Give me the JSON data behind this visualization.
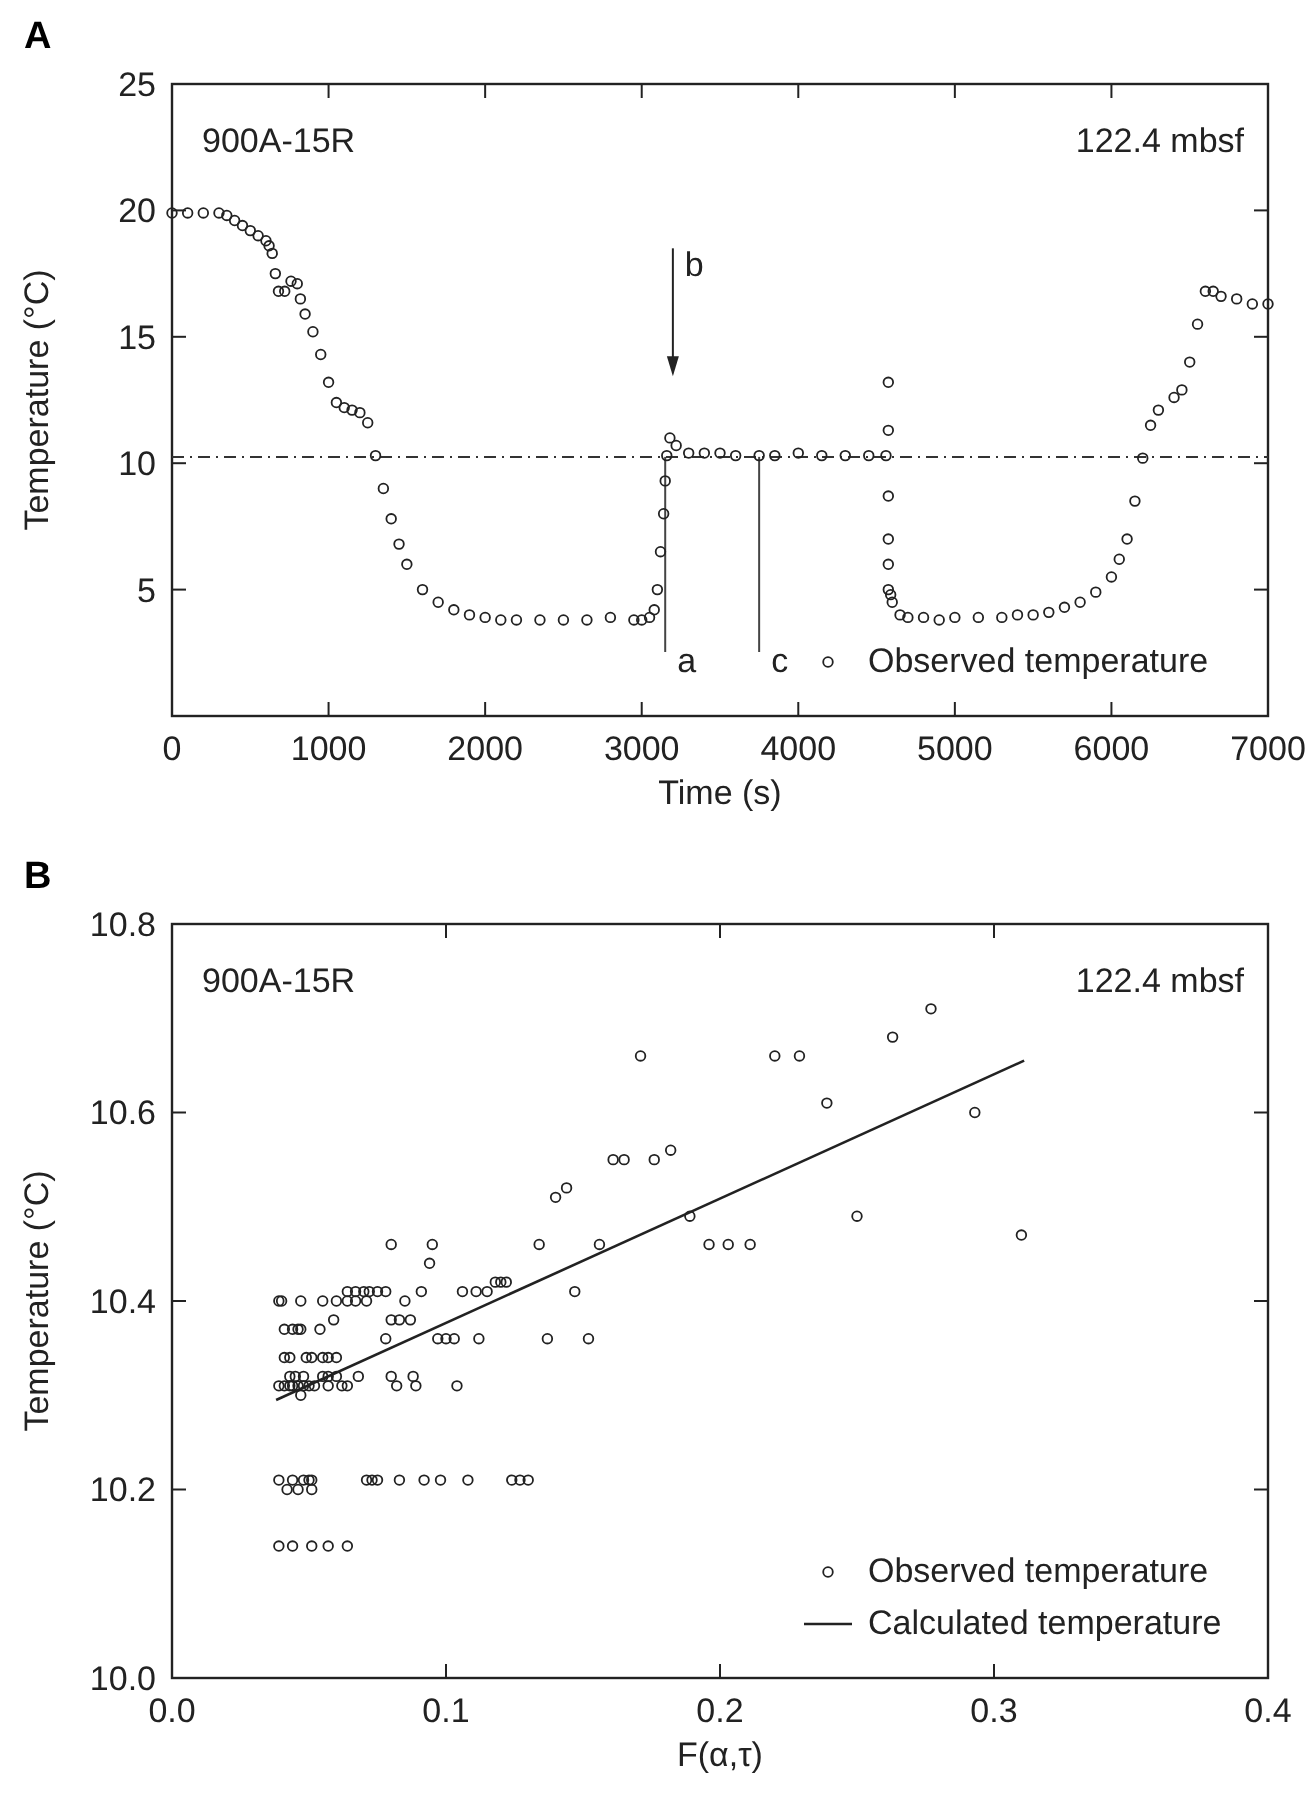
{
  "chart_data": [
    {
      "type": "scatter",
      "title": "A",
      "xlabel": "Time (s)",
      "ylabel": "Temperature (°C)",
      "xlim": [
        0,
        7000
      ],
      "xticks": [
        0,
        1000,
        2000,
        3000,
        4000,
        5000,
        6000,
        7000
      ],
      "ylim": [
        0,
        25
      ],
      "yticks": [
        5,
        10,
        15,
        20,
        25
      ],
      "marker": "circle",
      "legend": "bottom right",
      "grid": false,
      "ref_lines": [
        {
          "axis": "y",
          "value": 10.25,
          "line_style": "dashed"
        },
        {
          "axis": "x",
          "value": 3150,
          "label": "a"
        },
        {
          "axis": "x",
          "value": 3750,
          "label": "c"
        }
      ],
      "annotations": [
        "900A-15R",
        "122.4 mbsf",
        "b"
      ],
      "series": [
        {
          "name": "Observed temperature",
          "color": "#222222",
          "x": [
            0,
            100,
            200,
            300,
            350,
            400,
            450,
            500,
            550,
            600,
            620,
            640,
            660,
            680,
            720,
            760,
            800,
            820,
            850,
            900,
            950,
            1000,
            1050,
            1100,
            1150,
            1200,
            1250,
            1300,
            1350,
            1400,
            1450,
            1500,
            1600,
            1700,
            1800,
            1900,
            2000,
            2100,
            2200,
            2350,
            2500,
            2650,
            2800,
            2950,
            3000,
            3050,
            3080,
            3100,
            3120,
            3140,
            3150,
            3160,
            3180,
            3220,
            3300,
            3400,
            3500,
            3600,
            3750,
            3850,
            4000,
            4150,
            4300,
            4450,
            4560,
            4575,
            4575,
            4575,
            4575,
            4575,
            4575,
            4590,
            4600,
            4650,
            4700,
            4800,
            4900,
            5000,
            5150,
            5300,
            5400,
            5500,
            5600,
            5700,
            5800,
            5900,
            6000,
            6050,
            6100,
            6150,
            6200,
            6250,
            6300,
            6400,
            6450,
            6500,
            6550,
            6600,
            6650,
            6700,
            6800,
            6900,
            7000
          ],
          "values": [
            19.9,
            19.9,
            19.9,
            19.9,
            19.8,
            19.6,
            19.4,
            19.2,
            19.0,
            18.8,
            18.6,
            18.3,
            17.5,
            16.8,
            16.8,
            17.2,
            17.1,
            16.5,
            15.9,
            15.2,
            14.3,
            13.2,
            12.4,
            12.2,
            12.1,
            12.0,
            11.6,
            10.3,
            9.0,
            7.8,
            6.8,
            6.0,
            5.0,
            4.5,
            4.2,
            4.0,
            3.9,
            3.8,
            3.8,
            3.8,
            3.8,
            3.8,
            3.9,
            3.8,
            3.8,
            3.9,
            4.2,
            5.0,
            6.5,
            8.0,
            9.3,
            10.3,
            11.0,
            10.7,
            10.4,
            10.4,
            10.4,
            10.3,
            10.3,
            10.3,
            10.4,
            10.3,
            10.3,
            10.3,
            10.3,
            13.2,
            11.3,
            8.7,
            7.0,
            6.0,
            5.0,
            4.8,
            4.5,
            4.0,
            3.9,
            3.9,
            3.8,
            3.9,
            3.9,
            3.9,
            4.0,
            4.0,
            4.1,
            4.3,
            4.5,
            4.9,
            5.5,
            6.2,
            7.0,
            8.5,
            10.2,
            11.5,
            12.1,
            12.6,
            12.9,
            14.0,
            15.5,
            16.8,
            16.8,
            16.6,
            16.5,
            16.3,
            16.3
          ]
        }
      ]
    },
    {
      "type": "scatter",
      "title": "B",
      "xlabel": "F(α,τ)",
      "ylabel": "Temperature (°C)",
      "xlim": [
        0,
        0.4
      ],
      "xticks": [
        {
          "value": 0,
          "label": "0.0"
        },
        0.1,
        0.2,
        0.3,
        0.4
      ],
      "ylim": [
        10,
        10.8
      ],
      "yticks": [
        {
          "value": 10,
          "label": "10.0"
        },
        10.2,
        10.4,
        10.6,
        10.8
      ],
      "marker": "circle",
      "legend": "bottom right",
      "grid": false,
      "annotations": [
        "900A-15R",
        "122.4 mbsf"
      ],
      "series": [
        {
          "name": "Observed temperature",
          "color": "#222222",
          "x": [
            0.039,
            0.044,
            0.051,
            0.057,
            0.064,
            0.039,
            0.044,
            0.048,
            0.05,
            0.051,
            0.042,
            0.046,
            0.051,
            0.071,
            0.073,
            0.075,
            0.083,
            0.092,
            0.098,
            0.108,
            0.124,
            0.127,
            0.13,
            0.039,
            0.041,
            0.043,
            0.044,
            0.046,
            0.048,
            0.05,
            0.052,
            0.057,
            0.062,
            0.064,
            0.082,
            0.089,
            0.104,
            0.047,
            0.043,
            0.045,
            0.048,
            0.055,
            0.057,
            0.06,
            0.068,
            0.08,
            0.088,
            0.041,
            0.043,
            0.049,
            0.051,
            0.055,
            0.057,
            0.06,
            0.078,
            0.097,
            0.1,
            0.103,
            0.112,
            0.137,
            0.152,
            0.041,
            0.044,
            0.046,
            0.047,
            0.054,
            0.059,
            0.08,
            0.083,
            0.087,
            0.039,
            0.04,
            0.047,
            0.055,
            0.06,
            0.064,
            0.067,
            0.071,
            0.085,
            0.064,
            0.067,
            0.07,
            0.072,
            0.075,
            0.078,
            0.091,
            0.106,
            0.111,
            0.115,
            0.147,
            0.118,
            0.12,
            0.122,
            0.094,
            0.08,
            0.095,
            0.134,
            0.156,
            0.196,
            0.203,
            0.211,
            0.31,
            0.189,
            0.25,
            0.14,
            0.144,
            0.161,
            0.165,
            0.176,
            0.182,
            0.239,
            0.293,
            0.171,
            0.22,
            0.229,
            0.263,
            0.277
          ],
          "values": [
            10.14,
            10.14,
            10.14,
            10.14,
            10.14,
            10.21,
            10.21,
            10.21,
            10.21,
            10.21,
            10.2,
            10.2,
            10.2,
            10.21,
            10.21,
            10.21,
            10.21,
            10.21,
            10.21,
            10.21,
            10.21,
            10.21,
            10.21,
            10.31,
            10.31,
            10.31,
            10.31,
            10.31,
            10.31,
            10.31,
            10.31,
            10.31,
            10.31,
            10.31,
            10.31,
            10.31,
            10.31,
            10.3,
            10.32,
            10.32,
            10.32,
            10.32,
            10.32,
            10.32,
            10.32,
            10.32,
            10.32,
            10.34,
            10.34,
            10.34,
            10.34,
            10.34,
            10.34,
            10.34,
            10.36,
            10.36,
            10.36,
            10.36,
            10.36,
            10.36,
            10.36,
            10.37,
            10.37,
            10.37,
            10.37,
            10.37,
            10.38,
            10.38,
            10.38,
            10.38,
            10.4,
            10.4,
            10.4,
            10.4,
            10.4,
            10.4,
            10.4,
            10.4,
            10.4,
            10.41,
            10.41,
            10.41,
            10.41,
            10.41,
            10.41,
            10.41,
            10.41,
            10.41,
            10.41,
            10.41,
            10.42,
            10.42,
            10.42,
            10.44,
            10.46,
            10.46,
            10.46,
            10.46,
            10.46,
            10.46,
            10.46,
            10.47,
            10.49,
            10.49,
            10.51,
            10.52,
            10.55,
            10.55,
            10.55,
            10.56,
            10.61,
            10.6,
            10.66,
            10.66,
            10.66,
            10.68,
            10.71
          ]
        },
        {
          "name": "Calculated temperature",
          "color": "#222222",
          "type": "line",
          "marker": "none",
          "x": [
            0.038,
            0.311
          ],
          "values": [
            10.295,
            10.655
          ]
        }
      ]
    }
  ]
}
